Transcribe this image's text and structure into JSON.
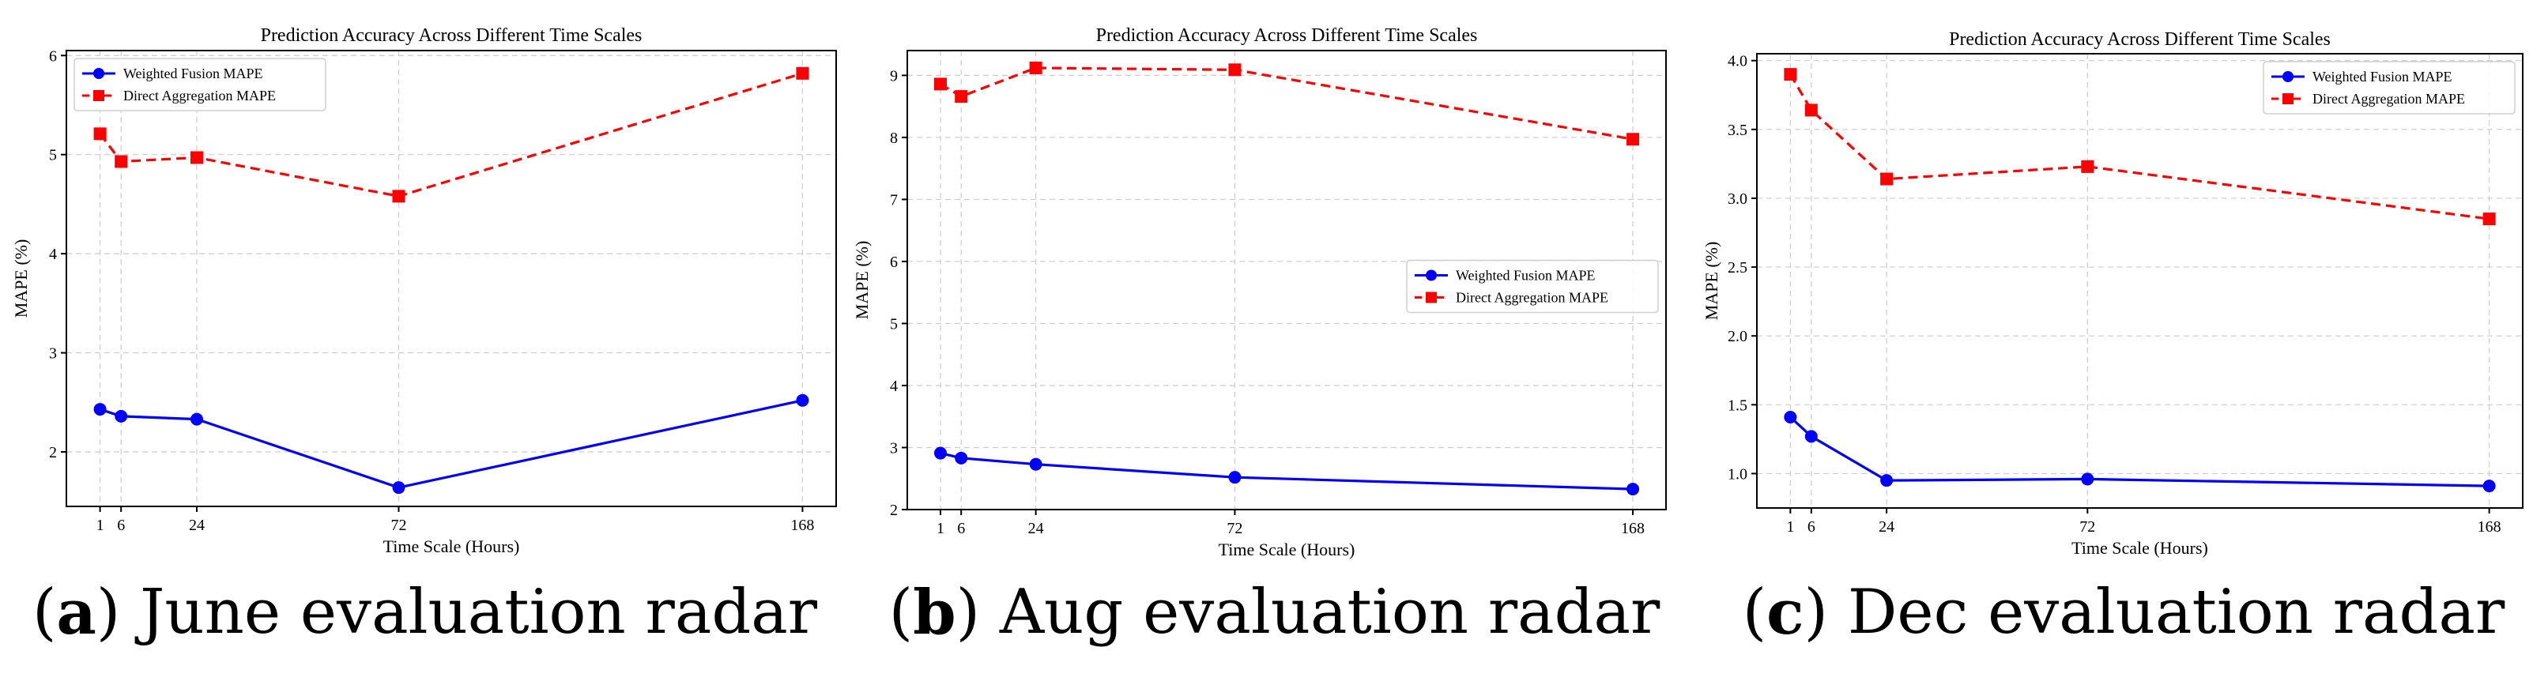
{
  "figure": {
    "captions": [
      {
        "paren_open": "(",
        "letter": "a",
        "paren_close": ")",
        "text": " June evaluation radar"
      },
      {
        "paren_open": "(",
        "letter": "b",
        "paren_close": ")",
        "text": " Aug evaluation radar"
      },
      {
        "paren_open": "(",
        "letter": "c",
        "paren_close": ")",
        "text": " Dec evaluation radar"
      }
    ]
  },
  "colors": {
    "weighted": "#0000ff",
    "direct": "#ff0000",
    "grid": "#cccccc",
    "axis": "#000000"
  },
  "chart_data": [
    {
      "type": "line",
      "title": "Prediction Accuracy Across Different Time Scales",
      "xlabel": "Time Scale (Hours)",
      "ylabel": "MAPE (%)",
      "x": [
        1,
        6,
        24,
        72,
        168
      ],
      "xticks": [
        1,
        6,
        24,
        72,
        168
      ],
      "xticklabels": [
        "1",
        "6",
        "24",
        "72",
        "168"
      ],
      "xlim": [
        -7,
        176
      ],
      "yticks": [
        2,
        3,
        4,
        5,
        6
      ],
      "yticklabels": [
        "2",
        "3",
        "4",
        "5",
        "6"
      ],
      "ylim": [
        1.45,
        6.05
      ],
      "grid": true,
      "legend_position": "upper-left",
      "series": [
        {
          "name": "Weighted Fusion MAPE",
          "style": "solid",
          "marker": "circle",
          "values": [
            2.43,
            2.36,
            2.33,
            1.64,
            2.52
          ]
        },
        {
          "name": "Direct Aggregation MAPE",
          "style": "dashed",
          "marker": "square",
          "values": [
            5.21,
            4.93,
            4.97,
            4.58,
            5.82
          ]
        }
      ]
    },
    {
      "type": "line",
      "title": "Prediction Accuracy Across Different Time Scales",
      "xlabel": "Time Scale (Hours)",
      "ylabel": "MAPE (%)",
      "x": [
        1,
        6,
        24,
        72,
        168
      ],
      "xticks": [
        1,
        6,
        24,
        72,
        168
      ],
      "xticklabels": [
        "1",
        "6",
        "24",
        "72",
        "168"
      ],
      "xlim": [
        -7,
        176
      ],
      "yticks": [
        2,
        3,
        4,
        5,
        6,
        7,
        8,
        9
      ],
      "yticklabels": [
        "2",
        "3",
        "4",
        "5",
        "6",
        "7",
        "8",
        "9"
      ],
      "ylim": [
        2.0,
        9.4
      ],
      "grid": true,
      "legend_position": "center-right",
      "series": [
        {
          "name": "Weighted Fusion MAPE",
          "style": "solid",
          "marker": "circle",
          "values": [
            2.91,
            2.83,
            2.73,
            2.52,
            2.33
          ]
        },
        {
          "name": "Direct Aggregation MAPE",
          "style": "dashed",
          "marker": "square",
          "values": [
            8.86,
            8.66,
            9.12,
            9.09,
            7.97
          ]
        }
      ]
    },
    {
      "type": "line",
      "title": "Prediction Accuracy Across Different Time Scales",
      "xlabel": "Time Scale (Hours)",
      "ylabel": "MAPE (%)",
      "x": [
        1,
        6,
        24,
        72,
        168
      ],
      "xticks": [
        1,
        6,
        24,
        72,
        168
      ],
      "xticklabels": [
        "1",
        "6",
        "24",
        "72",
        "168"
      ],
      "xlim": [
        -7,
        176
      ],
      "yticks": [
        1.0,
        1.5,
        2.0,
        2.5,
        3.0,
        3.5,
        4.0
      ],
      "yticklabels": [
        "1.0",
        "1.5",
        "2.0",
        "2.5",
        "3.0",
        "3.5",
        "4.0"
      ],
      "ylim": [
        0.75,
        4.05
      ],
      "grid": true,
      "legend_position": "upper-right",
      "series": [
        {
          "name": "Weighted Fusion MAPE",
          "style": "solid",
          "marker": "circle",
          "values": [
            1.41,
            1.27,
            0.95,
            0.96,
            0.91
          ]
        },
        {
          "name": "Direct Aggregation MAPE",
          "style": "dashed",
          "marker": "square",
          "values": [
            3.9,
            3.64,
            3.14,
            3.23,
            2.85
          ]
        }
      ]
    }
  ]
}
